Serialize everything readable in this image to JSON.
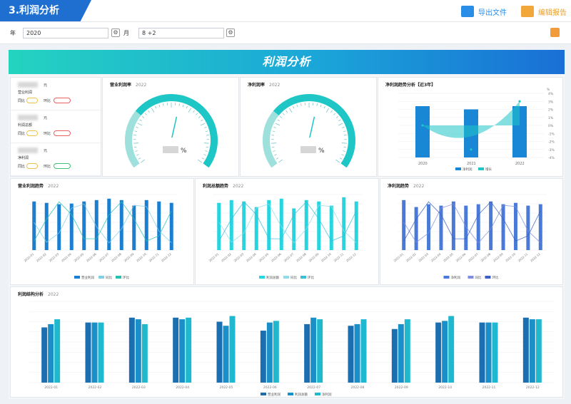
{
  "header": {
    "title": "3.利润分析",
    "export_label": "导出文件",
    "edit_label": "编辑报告"
  },
  "filters": {
    "year_label": "年",
    "year_value": "2020",
    "month_label": "月",
    "month_value": "8 +2"
  },
  "banner": {
    "title": "利润分析"
  },
  "kpis": [
    {
      "label": "营业利润",
      "unit": "元",
      "yoy_label": "同比",
      "mom_label": "环比"
    },
    {
      "label": "利润总额",
      "unit": "元",
      "yoy_label": "同比",
      "mom_label": "环比"
    },
    {
      "label": "净利润",
      "unit": "元",
      "yoy_label": "同比",
      "mom_label": "环比"
    }
  ],
  "gauges": [
    {
      "title": "营业利润率",
      "year": "2022",
      "unit": "%",
      "level": 0.55
    },
    {
      "title": "净利润率",
      "year": "2022",
      "unit": "%",
      "level": 0.55
    }
  ],
  "charts": {
    "net_profit_trend": {
      "title": "净利润趋势分析【近3年】",
      "year": "",
      "categories": [
        "2020",
        "2021",
        "2022"
      ],
      "right_unit": "%",
      "legend": [
        "净利润",
        "增长"
      ]
    },
    "op_profit_trend": {
      "title": "营业利润趋势",
      "year": "2022",
      "legend": [
        "营业利润",
        "同比",
        "环比"
      ]
    },
    "total_profit_trend": {
      "title": "利润总额趋势",
      "year": "2022",
      "legend": [
        "利润总额",
        "同比",
        "环比"
      ]
    },
    "net_profit_monthly": {
      "title": "净利润趋势",
      "year": "2022",
      "legend": [
        "净利润",
        "同比",
        "环比"
      ]
    },
    "structure": {
      "title": "利润结构分析",
      "year": "2022",
      "legend": [
        "营业利润",
        "利润总额",
        "净利润"
      ],
      "categories": [
        "2022-01",
        "2022-02",
        "2022-03",
        "2022-04",
        "2022-05",
        "2022-06",
        "2022-07",
        "2022-08",
        "2022-09",
        "2022-10",
        "2022-11",
        "2022-12"
      ]
    }
  },
  "chart_data": [
    {
      "type": "bar",
      "title": "净利润趋势分析【近3年】",
      "categories": [
        "2020",
        "2021",
        "2022"
      ],
      "series": [
        {
          "name": "净利润",
          "values": [
            8,
            7.5,
            8
          ]
        },
        {
          "name": "增长",
          "values": [
            0,
            -3,
            3
          ]
        }
      ]
    },
    {
      "type": "bar",
      "title": "营业利润趋势",
      "categories": [
        "2022-01",
        "2022-02",
        "2022-03",
        "2022-04",
        "2022-05",
        "2022-06",
        "2022-07",
        "2022-08",
        "2022-09",
        "2022-10",
        "2022-11",
        "2022-12"
      ],
      "series": [
        {
          "name": "营业利润",
          "values": [
            70,
            68,
            66,
            67,
            70,
            72,
            74,
            72,
            64,
            72,
            70,
            68
          ]
        }
      ]
    },
    {
      "type": "bar",
      "title": "利润总额趋势",
      "categories": [
        "2022-01",
        "2022-02",
        "2022-03",
        "2022-04",
        "2022-05",
        "2022-06",
        "2022-07",
        "2022-08",
        "2022-09",
        "2022-10",
        "2022-11",
        "2022-12"
      ],
      "series": [
        {
          "name": "利润总额",
          "values": [
            68,
            72,
            70,
            62,
            72,
            74,
            60,
            72,
            70,
            64,
            76,
            70
          ]
        }
      ]
    },
    {
      "type": "bar",
      "title": "净利润趋势",
      "categories": [
        "2022-01",
        "2022-02",
        "2022-03",
        "2022-04",
        "2022-05",
        "2022-06",
        "2022-07",
        "2022-08",
        "2022-09",
        "2022-10",
        "2022-11",
        "2022-12"
      ],
      "series": [
        {
          "name": "净利润",
          "values": [
            72,
            62,
            66,
            64,
            70,
            64,
            66,
            70,
            66,
            68,
            64,
            66
          ]
        }
      ]
    },
    {
      "type": "bar",
      "title": "利润结构分析",
      "categories": [
        "2022-01",
        "2022-02",
        "2022-03",
        "2022-04",
        "2022-05",
        "2022-06",
        "2022-07",
        "2022-08",
        "2022-09",
        "2022-10",
        "2022-11",
        "2022-12"
      ],
      "series": [
        {
          "name": "营业利润",
          "values": [
            68,
            74,
            80,
            80,
            75,
            64,
            72,
            70,
            66,
            74,
            74,
            80
          ]
        },
        {
          "name": "利润总额",
          "values": [
            72,
            74,
            78,
            78,
            70,
            74,
            80,
            72,
            72,
            76,
            74,
            78
          ]
        },
        {
          "name": "净利润",
          "values": [
            78,
            74,
            72,
            80,
            82,
            76,
            78,
            78,
            78,
            82,
            74,
            78
          ]
        }
      ]
    }
  ],
  "colors": {
    "brand": "#1f6fd1",
    "teal": "#1fc6c6",
    "blue": "#1a86d6",
    "deep": "#1b6fc2",
    "orange": "#f29b3a"
  }
}
